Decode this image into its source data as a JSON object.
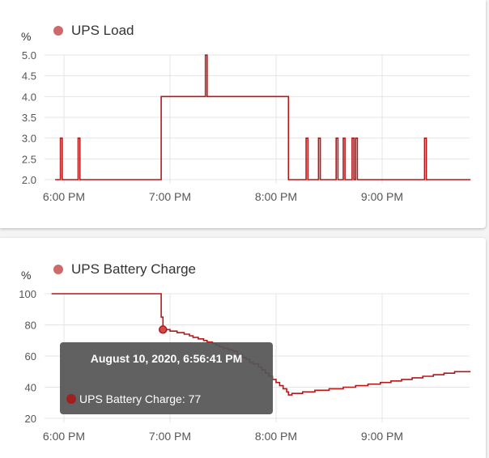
{
  "colors": {
    "series": "#b31818",
    "legend_dot": "#cd6b6b",
    "grid": "#e4e4e4",
    "axis_text": "#555555",
    "title_text": "#333333"
  },
  "chart_data": [
    {
      "type": "line",
      "step": true,
      "title": "UPS Load",
      "unit": "%",
      "legend": [
        "UPS Load"
      ],
      "x_ticks": [
        "6:00 PM",
        "7:00 PM",
        "8:00 PM",
        "9:00 PM"
      ],
      "x_range": [
        "17:55",
        "21:50"
      ],
      "y_ticks": [
        "2.0",
        "2.5",
        "3.0",
        "3.5",
        "4.0",
        "4.5",
        "5.0"
      ],
      "ylim": [
        2.0,
        5.0
      ],
      "grid": true,
      "series": [
        {
          "name": "UPS Load",
          "points": [
            [
              "17:55",
              2
            ],
            [
              "17:58",
              2
            ],
            [
              "17:58",
              3
            ],
            [
              "17:59",
              3
            ],
            [
              "17:59",
              2
            ],
            [
              "18:08",
              2
            ],
            [
              "18:08",
              3
            ],
            [
              "18:09",
              3
            ],
            [
              "18:09",
              2
            ],
            [
              "18:55",
              2
            ],
            [
              "18:55",
              4
            ],
            [
              "19:20",
              4
            ],
            [
              "19:20",
              5
            ],
            [
              "19:21",
              5
            ],
            [
              "19:21",
              4
            ],
            [
              "20:07",
              4
            ],
            [
              "20:07",
              2
            ],
            [
              "20:17",
              2
            ],
            [
              "20:17",
              3
            ],
            [
              "20:18",
              3
            ],
            [
              "20:18",
              2
            ],
            [
              "20:24",
              2
            ],
            [
              "20:24",
              3
            ],
            [
              "20:25",
              3
            ],
            [
              "20:25",
              2
            ],
            [
              "20:34",
              2
            ],
            [
              "20:34",
              3
            ],
            [
              "20:35",
              3
            ],
            [
              "20:35",
              2
            ],
            [
              "20:38",
              2
            ],
            [
              "20:38",
              3
            ],
            [
              "20:39",
              3
            ],
            [
              "20:39",
              2
            ],
            [
              "20:43",
              2
            ],
            [
              "20:43",
              3
            ],
            [
              "20:44",
              3
            ],
            [
              "20:44",
              2
            ],
            [
              "20:45",
              2
            ],
            [
              "20:45",
              3
            ],
            [
              "20:46",
              3
            ],
            [
              "20:46",
              2
            ],
            [
              "21:24",
              2
            ],
            [
              "21:24",
              3
            ],
            [
              "21:25",
              3
            ],
            [
              "21:25",
              2
            ],
            [
              "21:50",
              2
            ]
          ]
        }
      ]
    },
    {
      "type": "line",
      "step": true,
      "title": "UPS Battery Charge",
      "unit": "%",
      "legend": [
        "UPS Battery Charge"
      ],
      "x_ticks": [
        "6:00 PM",
        "7:00 PM",
        "8:00 PM",
        "9:00 PM"
      ],
      "x_range": [
        "17:55",
        "21:50"
      ],
      "y_ticks": [
        "20",
        "40",
        "60",
        "80",
        "100"
      ],
      "ylim": [
        20,
        100
      ],
      "grid": true,
      "series": [
        {
          "name": "UPS Battery Charge",
          "points": [
            [
              "17:50",
              100
            ],
            [
              "18:55",
              100
            ],
            [
              "18:55",
              85
            ],
            [
              "18:56",
              85
            ],
            [
              "18:56",
              77
            ],
            [
              "19:00",
              77
            ],
            [
              "19:00",
              76
            ],
            [
              "19:04",
              76
            ],
            [
              "19:04",
              75
            ],
            [
              "19:08",
              75
            ],
            [
              "19:08",
              74
            ],
            [
              "19:11",
              74
            ],
            [
              "19:11",
              73
            ],
            [
              "19:13",
              73
            ],
            [
              "19:13",
              72
            ],
            [
              "19:16",
              72
            ],
            [
              "19:16",
              71
            ],
            [
              "19:19",
              71
            ],
            [
              "19:19",
              70
            ],
            [
              "19:21",
              70
            ],
            [
              "19:21",
              69
            ],
            [
              "19:24",
              69
            ],
            [
              "19:24",
              68
            ],
            [
              "19:26",
              68
            ],
            [
              "19:26",
              67
            ],
            [
              "19:28",
              67
            ],
            [
              "19:28",
              66
            ],
            [
              "19:30",
              66
            ],
            [
              "19:30",
              65
            ],
            [
              "19:33",
              65
            ],
            [
              "19:33",
              64
            ],
            [
              "19:36",
              64
            ],
            [
              "19:36",
              63
            ],
            [
              "19:38",
              63
            ],
            [
              "19:38",
              61
            ],
            [
              "19:41",
              61
            ],
            [
              "19:41",
              59
            ],
            [
              "19:43",
              59
            ],
            [
              "19:43",
              58
            ],
            [
              "19:45",
              58
            ],
            [
              "19:45",
              56
            ],
            [
              "19:47",
              56
            ],
            [
              "19:47",
              55
            ],
            [
              "19:50",
              55
            ],
            [
              "19:50",
              53
            ],
            [
              "19:52",
              53
            ],
            [
              "19:52",
              51
            ],
            [
              "19:54",
              51
            ],
            [
              "19:54",
              49
            ],
            [
              "19:56",
              49
            ],
            [
              "19:56",
              47
            ],
            [
              "19:58",
              47
            ],
            [
              "19:58",
              45
            ],
            [
              "20:00",
              45
            ],
            [
              "20:00",
              43
            ],
            [
              "20:02",
              43
            ],
            [
              "20:02",
              41
            ],
            [
              "20:04",
              41
            ],
            [
              "20:04",
              39
            ],
            [
              "20:06",
              39
            ],
            [
              "20:06",
              37
            ],
            [
              "20:07",
              37
            ],
            [
              "20:07",
              35
            ],
            [
              "20:09",
              35
            ],
            [
              "20:09",
              36
            ],
            [
              "20:15",
              36
            ],
            [
              "20:15",
              37
            ],
            [
              "20:22",
              37
            ],
            [
              "20:22",
              38
            ],
            [
              "20:30",
              38
            ],
            [
              "20:30",
              39
            ],
            [
              "20:38",
              39
            ],
            [
              "20:38",
              40
            ],
            [
              "20:45",
              40
            ],
            [
              "20:45",
              41
            ],
            [
              "20:52",
              41
            ],
            [
              "20:52",
              42
            ],
            [
              "20:59",
              42
            ],
            [
              "20:59",
              43
            ],
            [
              "21:05",
              43
            ],
            [
              "21:05",
              44
            ],
            [
              "21:11",
              44
            ],
            [
              "21:11",
              45
            ],
            [
              "21:17",
              45
            ],
            [
              "21:17",
              46
            ],
            [
              "21:23",
              46
            ],
            [
              "21:23",
              47
            ],
            [
              "21:29",
              47
            ],
            [
              "21:29",
              48
            ],
            [
              "21:35",
              48
            ],
            [
              "21:35",
              49
            ],
            [
              "21:41",
              49
            ],
            [
              "21:41",
              50
            ],
            [
              "21:50",
              50
            ]
          ]
        }
      ],
      "tooltip": {
        "title": "August 10, 2020, 6:56:41 PM",
        "label": "UPS Battery Charge: 77",
        "point": [
          "18:56",
          77
        ]
      }
    }
  ]
}
